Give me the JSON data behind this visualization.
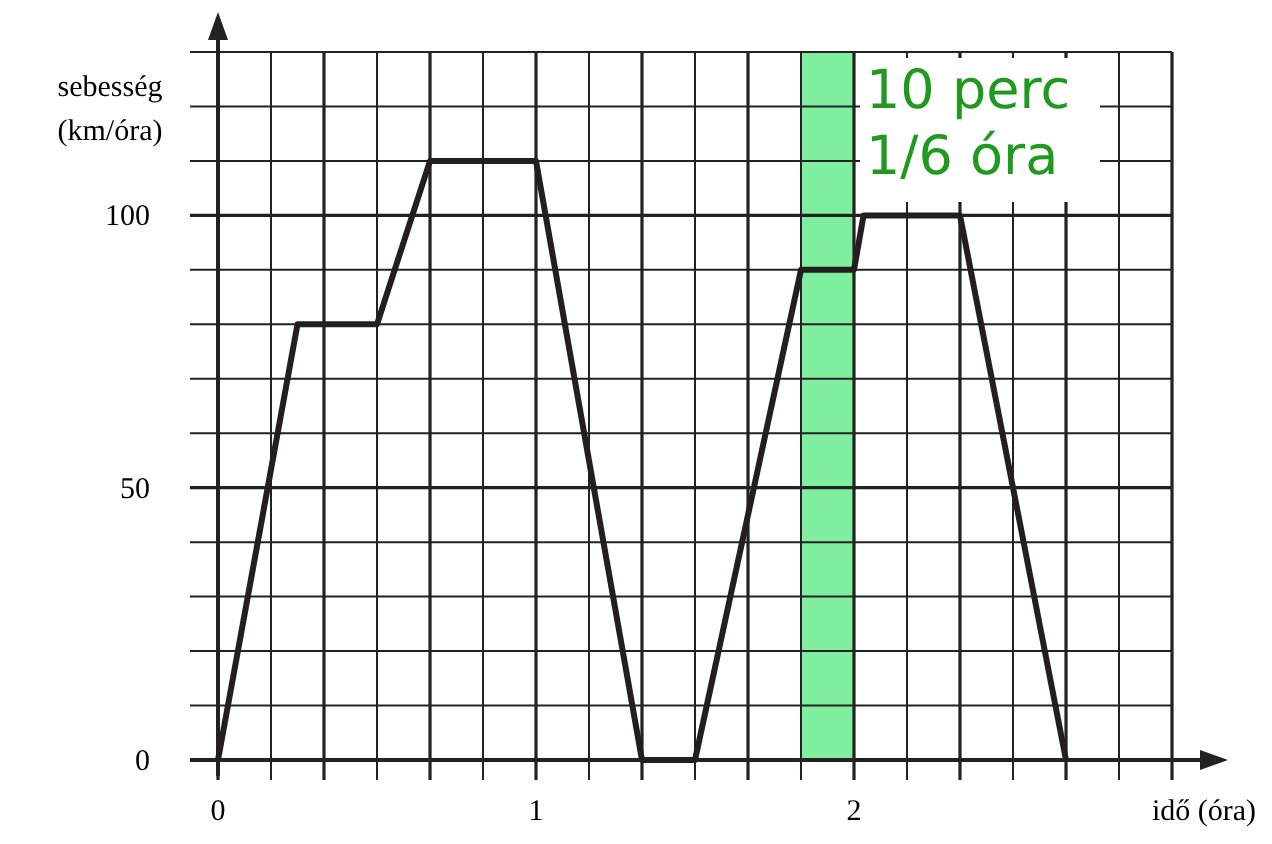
{
  "chart_data": {
    "type": "line",
    "xlabel": "idő (óra)",
    "ylabel": "sebesség\n(km/óra)",
    "x": [
      0,
      0.25,
      0.5,
      0.6667,
      1,
      1.3333,
      1.5,
      1.8333,
      2,
      2.03,
      2.3333,
      2.6667
    ],
    "series": [
      {
        "color": "#231f20",
        "values": [
          0,
          80,
          80,
          110,
          110,
          0,
          0,
          90,
          90,
          100,
          100,
          0
        ]
      }
    ],
    "xlim": [
      0,
      3
    ],
    "xticks": [
      0,
      {
        "value": 0.1667,
        "label": null
      },
      {
        "value": 0.3333,
        "label": null
      },
      {
        "value": 0.5,
        "label": null
      },
      {
        "value": 0.6667,
        "label": null
      },
      {
        "value": 0.8333,
        "label": null
      },
      1,
      {
        "value": 1.1667,
        "label": null
      },
      {
        "value": 1.3333,
        "label": null
      },
      {
        "value": 1.5,
        "label": null
      },
      {
        "value": 1.6667,
        "label": null
      },
      {
        "value": 1.8333,
        "label": null
      },
      2,
      {
        "value": 2.1667,
        "label": null
      },
      {
        "value": 2.3333,
        "label": null
      },
      {
        "value": 2.5,
        "label": null
      },
      {
        "value": 2.6667,
        "label": null
      },
      {
        "value": 2.8333,
        "label": null
      },
      {
        "value": 3,
        "label": null
      }
    ],
    "ylim": [
      0,
      130
    ],
    "yticks": [
      0,
      {
        "value": 10,
        "label": null
      },
      {
        "value": 20,
        "label": null
      },
      {
        "value": 30,
        "label": null
      },
      {
        "value": 40,
        "label": null
      },
      50,
      {
        "value": 60,
        "label": null
      },
      {
        "value": 70,
        "label": null
      },
      {
        "value": 80,
        "label": null
      },
      {
        "value": 90,
        "label": null
      },
      100,
      {
        "value": 110,
        "label": null
      },
      {
        "value": 120,
        "label": null
      },
      {
        "value": 130,
        "label": null
      }
    ],
    "grid": true,
    "marker": "none",
    "line_style": "solid",
    "bands": [
      {
        "axis": "x",
        "from": 1.8333,
        "to": 2,
        "label": "10 perc\n1/6 óra",
        "color": "#80ee9f"
      }
    ]
  }
}
